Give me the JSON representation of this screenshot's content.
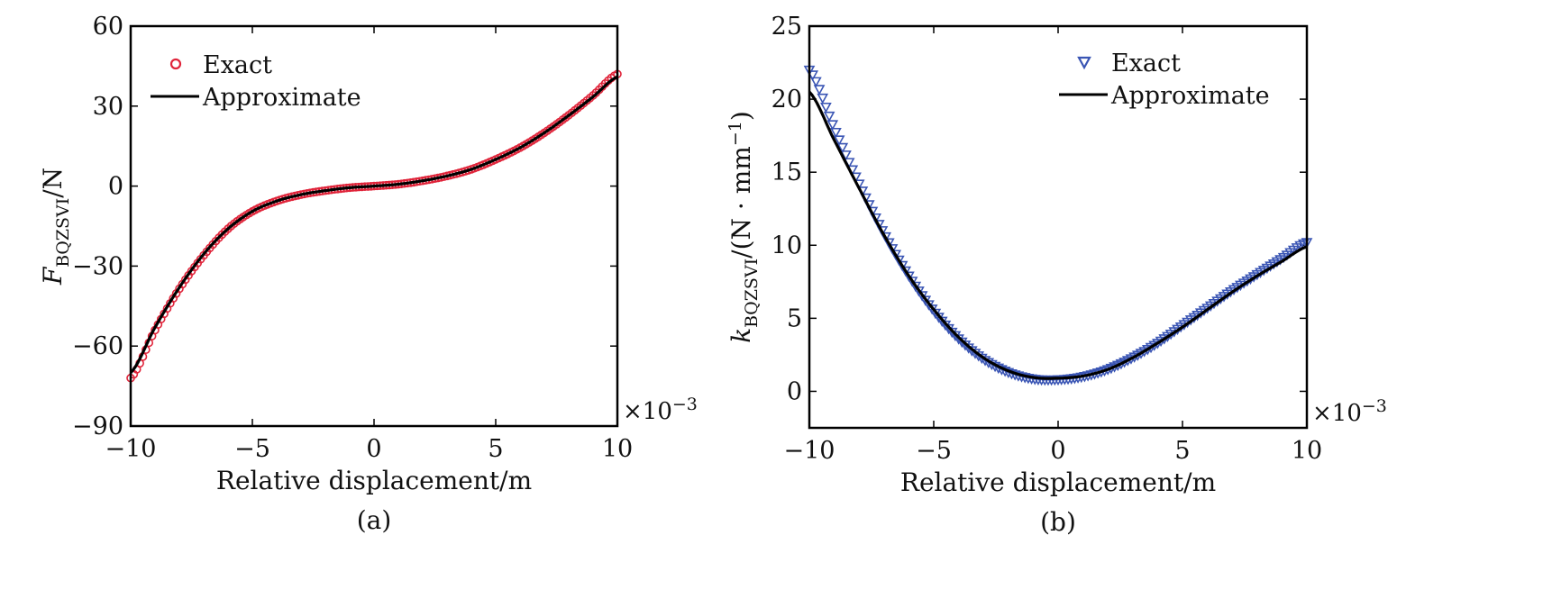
{
  "chart_data": [
    {
      "type": "line",
      "panel_label": "(a)",
      "xlabel": "Relative displacement/m",
      "ylabel_main": "F",
      "ylabel_sub": "BQZSVI",
      "ylabel_tail": "/N",
      "x_multiplier": "×10",
      "x_multiplier_exp": "−3",
      "xlim": [
        -10,
        10
      ],
      "ylim": [
        -90,
        60
      ],
      "xticks": [
        -10,
        -5,
        0,
        5,
        10
      ],
      "xtick_labels": [
        "−10",
        "−5",
        "0",
        "5",
        "10"
      ],
      "yticks": [
        -90,
        -60,
        -30,
        0,
        30,
        60
      ],
      "ytick_labels": [
        "−90",
        "−60",
        "−30",
        "0",
        "30",
        "60"
      ],
      "legend_position": "top-left",
      "series": [
        {
          "name": "Exact",
          "marker": "circle",
          "color": "#e0243a",
          "x": [
            -10,
            -9,
            -8,
            -7,
            -6,
            -5,
            -4,
            -3,
            -2,
            -1,
            0,
            1,
            2,
            3,
            4,
            5,
            6,
            7,
            8,
            9,
            10
          ],
          "y": [
            -72,
            -54,
            -38.5,
            -26,
            -16,
            -9.5,
            -5.6,
            -3.2,
            -1.7,
            -0.6,
            0,
            0.7,
            2,
            3.8,
            6.3,
            10,
            14.4,
            20,
            26.6,
            34,
            42
          ]
        },
        {
          "name": "Approximate",
          "marker": "line",
          "color": "#000000",
          "x": [
            -10,
            -9,
            -8,
            -7,
            -6,
            -5,
            -4,
            -3,
            -2,
            -1,
            0,
            1,
            2,
            3,
            4,
            5,
            6,
            7,
            8,
            9,
            10
          ],
          "y": [
            -70,
            -53,
            -38,
            -25.5,
            -16,
            -9.5,
            -5.6,
            -3.2,
            -1.7,
            -0.6,
            0,
            0.7,
            2,
            3.8,
            6.3,
            10,
            14.4,
            20,
            26.5,
            33.5,
            41
          ]
        }
      ]
    },
    {
      "type": "line",
      "panel_label": "(b)",
      "xlabel": "Relative displacement/m",
      "ylabel_main": "k",
      "ylabel_sub": "BQZSVI",
      "ylabel_tail": "/(N · mm",
      "ylabel_tail_exp": "−1",
      "ylabel_tail_close": ")",
      "x_multiplier": "×10",
      "x_multiplier_exp": "−3",
      "xlim": [
        -10,
        10
      ],
      "ylim": [
        -2.5,
        25
      ],
      "xticks": [
        -10,
        -5,
        0,
        5,
        10
      ],
      "xtick_labels": [
        "−10",
        "−5",
        "0",
        "5",
        "10"
      ],
      "yticks": [
        0,
        5,
        10,
        15,
        20,
        25
      ],
      "ytick_labels": [
        "0",
        "5",
        "10",
        "15",
        "20",
        "25"
      ],
      "legend_position": "top-right",
      "series": [
        {
          "name": "Exact",
          "marker": "triangle-down",
          "color": "#3a55b4",
          "x": [
            -10,
            -9,
            -8,
            -7,
            -6,
            -5,
            -4,
            -3,
            -2,
            -1,
            0,
            1,
            2,
            3,
            4,
            5,
            6,
            7,
            8,
            9,
            10
          ],
          "y": [
            22,
            18,
            14.2,
            10.8,
            7.9,
            5.5,
            3.6,
            2.2,
            1.3,
            0.85,
            0.8,
            1.0,
            1.5,
            2.3,
            3.3,
            4.5,
            5.7,
            6.9,
            8.0,
            9.1,
            10.2
          ]
        },
        {
          "name": "Approximate",
          "marker": "line",
          "color": "#000000",
          "x": [
            -10,
            -9,
            -8,
            -7,
            -6,
            -5,
            -4,
            -3,
            -2,
            -1,
            0,
            1,
            2,
            3,
            4,
            5,
            6,
            7,
            8,
            9,
            10
          ],
          "y": [
            20.5,
            17.2,
            13.9,
            10.7,
            7.9,
            5.6,
            3.7,
            2.3,
            1.4,
            0.95,
            0.9,
            1.05,
            1.5,
            2.3,
            3.3,
            4.4,
            5.6,
            6.8,
            7.9,
            8.9,
            9.9
          ]
        }
      ]
    }
  ]
}
